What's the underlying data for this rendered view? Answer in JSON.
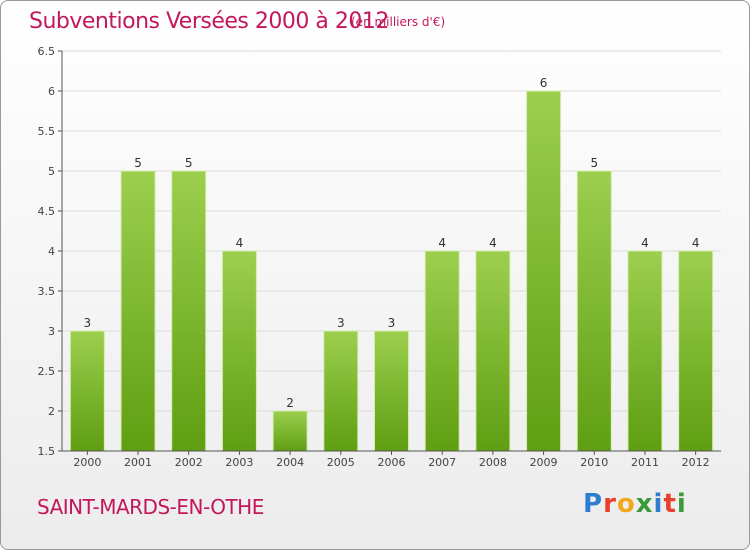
{
  "header": {
    "title": "Subventions Versées 2000 à 2012",
    "subtitle": "(en milliers d'€)"
  },
  "footer": {
    "commune": "SAINT-MARDS-EN-OTHE",
    "logo_text": "Proxiti",
    "logo_colors": [
      "#2e7dd1",
      "#e8402a",
      "#f2a81d",
      "#3a9a3a",
      "#2e7dd1",
      "#e8402a",
      "#3a9a3a"
    ]
  },
  "colors": {
    "accent": "#c2185b",
    "bar_top": "#9ccf4e",
    "bar_bottom": "#5f9e12",
    "grid": "#dcdcdc",
    "axis": "#555555"
  },
  "chart_data": {
    "type": "bar",
    "title": "Subventions Versées 2000 à 2012",
    "subtitle": "(en milliers d'€)",
    "xlabel": "",
    "ylabel": "",
    "categories": [
      "2000",
      "2001",
      "2002",
      "2003",
      "2004",
      "2005",
      "2006",
      "2007",
      "2008",
      "2009",
      "2010",
      "2011",
      "2012"
    ],
    "values": [
      3,
      5,
      5,
      4,
      2,
      3,
      3,
      4,
      4,
      6,
      5,
      4,
      4
    ],
    "ylim": [
      1.5,
      6.5
    ],
    "yticks": [
      1.5,
      2,
      2.5,
      3,
      3.5,
      4,
      4.5,
      5,
      5.5,
      6,
      6.5
    ],
    "data_labels": true,
    "grid": "horizontal",
    "legend": "none"
  }
}
